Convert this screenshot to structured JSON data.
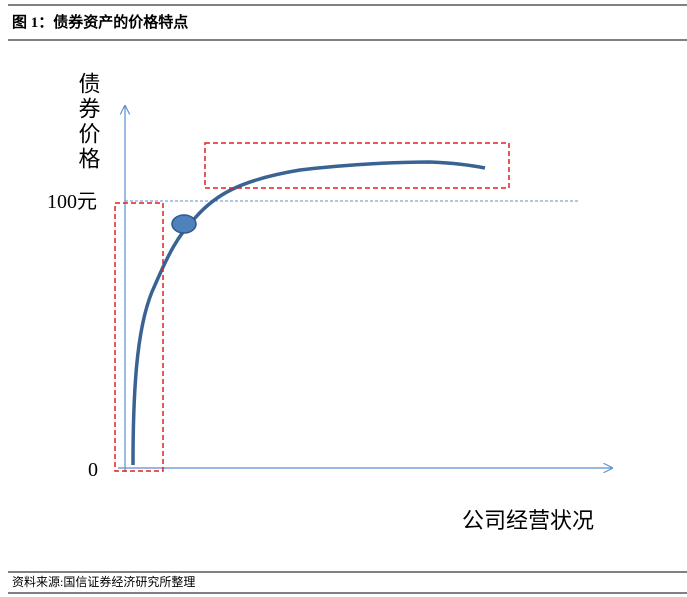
{
  "header": {
    "title": "图 1：债券资产的价格特点"
  },
  "diagram": {
    "y_label": "债券价格",
    "y_mark_high": "100元",
    "y_mark_zero": "0",
    "x_label": "公司经营状况"
  },
  "footer": {
    "source": "资料来源:国信证券经济研究所整理"
  }
}
